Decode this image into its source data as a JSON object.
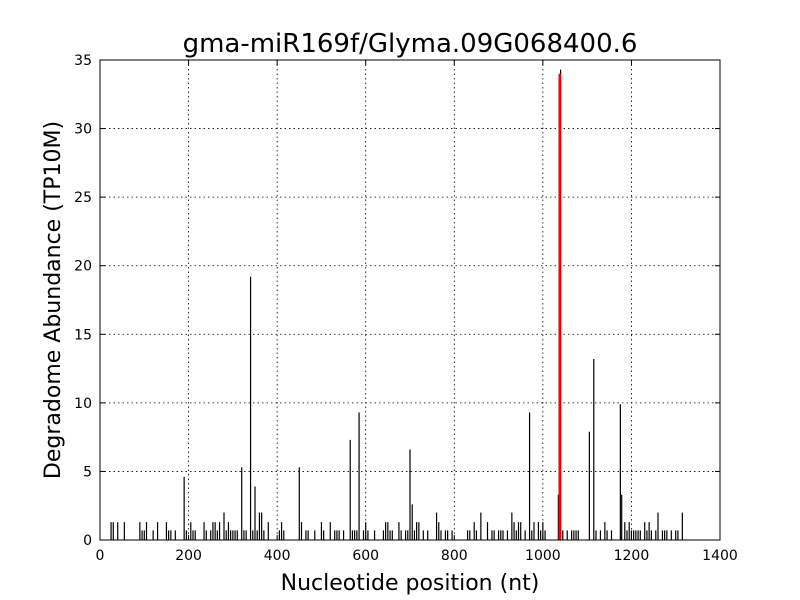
{
  "chart_data": {
    "type": "bar",
    "title": "gma-miR169f/Glyma.09G068400.6",
    "xlabel": "Nucleotide position (nt)",
    "ylabel": "Degradome Abundance (TP10M)",
    "xlim": [
      0,
      1400
    ],
    "ylim": [
      0,
      35
    ],
    "xticks": [
      0,
      200,
      400,
      600,
      800,
      1000,
      1200,
      1400
    ],
    "yticks": [
      0,
      5,
      10,
      15,
      20,
      25,
      30,
      35
    ],
    "grid": true,
    "highlight_color": "#ff0000",
    "bar_color": "#000000",
    "series": [
      {
        "values": [
          [
            25,
            1.3
          ],
          [
            30,
            1.3
          ],
          [
            40,
            1.3
          ],
          [
            55,
            1.3
          ],
          [
            90,
            1.3
          ],
          [
            95,
            0.7
          ],
          [
            100,
            0.7
          ],
          [
            105,
            1.3
          ],
          [
            120,
            0.7
          ],
          [
            130,
            1.3
          ],
          [
            150,
            1.3
          ],
          [
            155,
            0.7
          ],
          [
            160,
            0.7
          ],
          [
            170,
            0.7
          ],
          [
            190,
            4.6
          ],
          [
            195,
            0.7
          ],
          [
            205,
            1.3
          ],
          [
            210,
            0.7
          ],
          [
            215,
            0.7
          ],
          [
            235,
            1.3
          ],
          [
            240,
            0.7
          ],
          [
            250,
            0.7
          ],
          [
            255,
            1.3
          ],
          [
            260,
            1.3
          ],
          [
            265,
            0.7
          ],
          [
            270,
            1.3
          ],
          [
            280,
            2.0
          ],
          [
            285,
            0.7
          ],
          [
            290,
            1.3
          ],
          [
            295,
            0.7
          ],
          [
            300,
            0.7
          ],
          [
            305,
            0.7
          ],
          [
            310,
            0.7
          ],
          [
            320,
            5.3
          ],
          [
            325,
            0.7
          ],
          [
            330,
            0.7
          ],
          [
            340,
            19.2
          ],
          [
            345,
            0.7
          ],
          [
            350,
            3.9
          ],
          [
            355,
            0.7
          ],
          [
            360,
            2.0
          ],
          [
            365,
            2.0
          ],
          [
            370,
            0.7
          ],
          [
            380,
            1.3
          ],
          [
            405,
            0.7
          ],
          [
            410,
            1.3
          ],
          [
            415,
            0.7
          ],
          [
            450,
            5.3
          ],
          [
            455,
            1.3
          ],
          [
            465,
            0.7
          ],
          [
            470,
            0.7
          ],
          [
            485,
            0.7
          ],
          [
            500,
            1.3
          ],
          [
            505,
            0.7
          ],
          [
            520,
            1.3
          ],
          [
            530,
            0.7
          ],
          [
            535,
            0.7
          ],
          [
            540,
            0.7
          ],
          [
            550,
            0.7
          ],
          [
            565,
            7.3
          ],
          [
            570,
            0.7
          ],
          [
            575,
            0.7
          ],
          [
            580,
            0.7
          ],
          [
            585,
            9.3
          ],
          [
            595,
            0.7
          ],
          [
            600,
            1.3
          ],
          [
            605,
            0.7
          ],
          [
            620,
            0.7
          ],
          [
            640,
            0.7
          ],
          [
            645,
            1.3
          ],
          [
            650,
            1.3
          ],
          [
            655,
            0.7
          ],
          [
            660,
            0.7
          ],
          [
            675,
            1.3
          ],
          [
            680,
            0.7
          ],
          [
            690,
            0.7
          ],
          [
            695,
            0.7
          ],
          [
            700,
            6.6
          ],
          [
            705,
            2.6
          ],
          [
            710,
            0.7
          ],
          [
            715,
            1.3
          ],
          [
            720,
            1.3
          ],
          [
            730,
            0.7
          ],
          [
            740,
            0.7
          ],
          [
            760,
            2.0
          ],
          [
            765,
            1.3
          ],
          [
            770,
            0.7
          ],
          [
            780,
            0.7
          ],
          [
            785,
            0.7
          ],
          [
            795,
            0.7
          ],
          [
            830,
            0.7
          ],
          [
            835,
            0.7
          ],
          [
            845,
            1.3
          ],
          [
            850,
            0.7
          ],
          [
            860,
            2.0
          ],
          [
            875,
            1.3
          ],
          [
            885,
            0.7
          ],
          [
            890,
            0.7
          ],
          [
            900,
            0.7
          ],
          [
            905,
            0.7
          ],
          [
            910,
            0.7
          ],
          [
            920,
            0.7
          ],
          [
            930,
            2.0
          ],
          [
            935,
            1.3
          ],
          [
            940,
            0.7
          ],
          [
            945,
            1.3
          ],
          [
            950,
            1.3
          ],
          [
            960,
            0.7
          ],
          [
            970,
            9.3
          ],
          [
            975,
            0.7
          ],
          [
            980,
            1.3
          ],
          [
            990,
            1.3
          ],
          [
            995,
            0.7
          ],
          [
            1000,
            1.3
          ],
          [
            1005,
            0.7
          ],
          [
            1035,
            3.3
          ],
          [
            1040,
            34.3
          ],
          [
            1045,
            0.7
          ],
          [
            1055,
            0.7
          ],
          [
            1065,
            0.7
          ],
          [
            1070,
            0.7
          ],
          [
            1075,
            0.7
          ],
          [
            1080,
            0.7
          ],
          [
            1105,
            7.9
          ],
          [
            1115,
            13.2
          ],
          [
            1120,
            0.7
          ],
          [
            1130,
            0.7
          ],
          [
            1140,
            1.3
          ],
          [
            1145,
            0.7
          ],
          [
            1155,
            0.7
          ],
          [
            1175,
            9.9
          ],
          [
            1178,
            3.3
          ],
          [
            1185,
            1.3
          ],
          [
            1190,
            0.7
          ],
          [
            1195,
            1.3
          ],
          [
            1200,
            0.7
          ],
          [
            1205,
            0.7
          ],
          [
            1210,
            0.7
          ],
          [
            1215,
            0.7
          ],
          [
            1220,
            0.7
          ],
          [
            1230,
            1.3
          ],
          [
            1235,
            0.7
          ],
          [
            1240,
            1.3
          ],
          [
            1245,
            0.7
          ],
          [
            1255,
            0.7
          ],
          [
            1260,
            2.0
          ],
          [
            1270,
            0.7
          ],
          [
            1275,
            0.7
          ],
          [
            1280,
            0.7
          ],
          [
            1290,
            0.7
          ],
          [
            1300,
            0.7
          ],
          [
            1305,
            0.7
          ],
          [
            1315,
            2.0
          ]
        ]
      },
      {
        "values": [
          [
            1038,
            34.0
          ]
        ]
      }
    ]
  }
}
